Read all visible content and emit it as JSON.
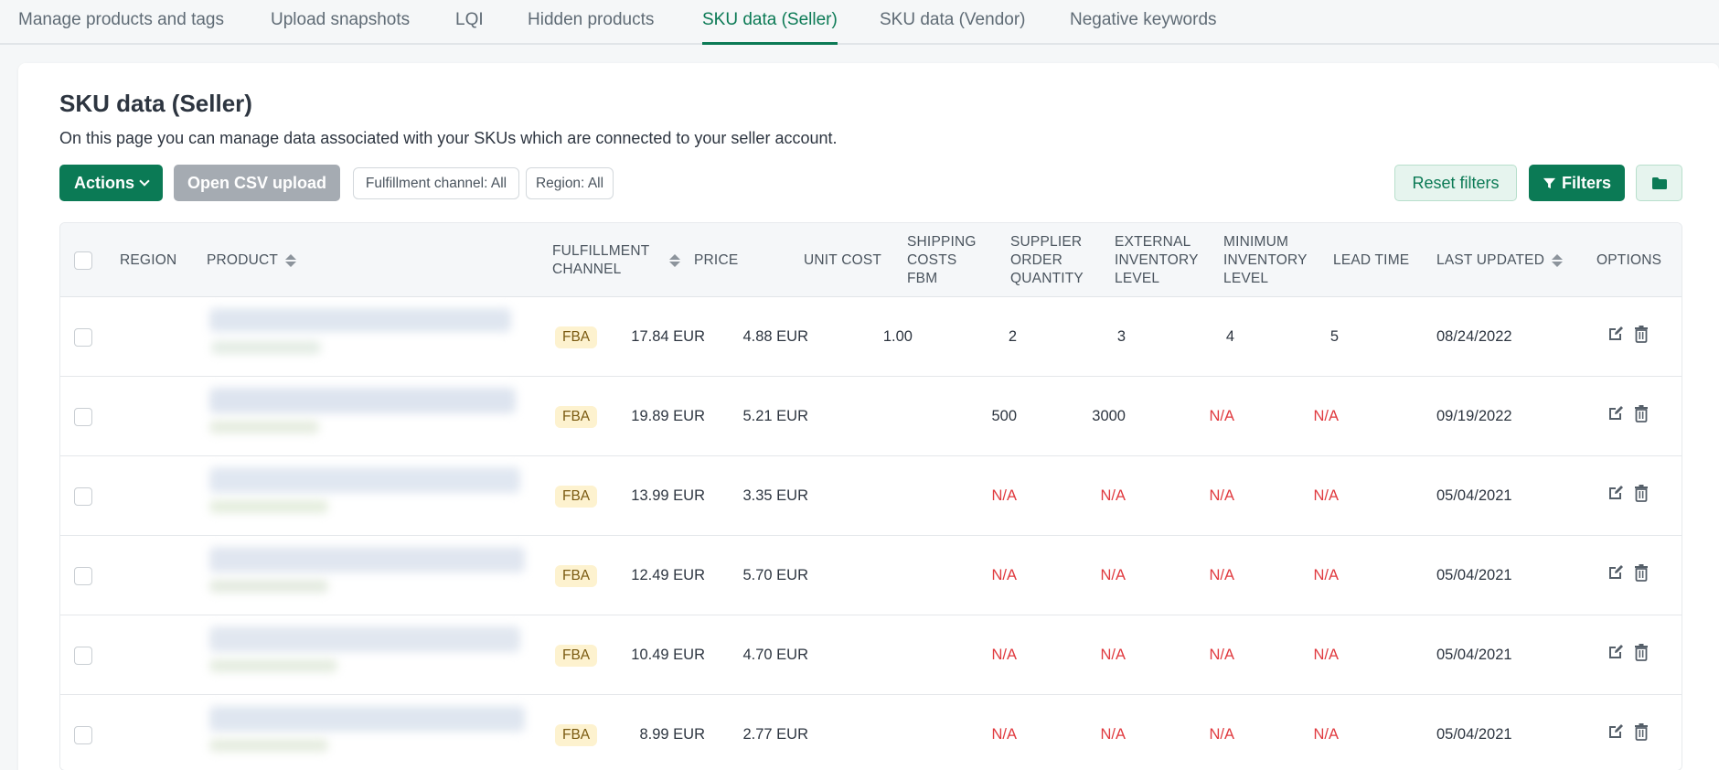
{
  "tabs": [
    {
      "label": "Manage products and tags",
      "active": false
    },
    {
      "label": "Upload snapshots",
      "active": false
    },
    {
      "label": "LQI",
      "active": false
    },
    {
      "label": "Hidden products",
      "active": false
    },
    {
      "label": "SKU data (Seller)",
      "active": true
    },
    {
      "label": "SKU data (Vendor)",
      "active": false
    },
    {
      "label": "Negative keywords",
      "active": false
    }
  ],
  "page": {
    "title": "SKU data (Seller)",
    "description": "On this page you can manage data associated with your SKUs which are connected to your seller account."
  },
  "toolbar": {
    "actions_label": "Actions",
    "csv_label": "Open CSV upload",
    "fulfillment_chip": "Fulfillment channel: All",
    "region_chip": "Region: All",
    "reset_label": "Reset filters",
    "filters_label": "Filters",
    "folder_icon": "folder-icon"
  },
  "table": {
    "columns": {
      "region": "REGION",
      "product": "PRODUCT",
      "fulfillment_channel": "FULFILLMENT CHANNEL",
      "price": "PRICE",
      "unit_cost": "UNIT COST",
      "shipping_costs_fbm": "SHIPPING COSTS FBM",
      "supplier_order_quantity": "SUPPLIER ORDER QUANTITY",
      "external_inventory_level": "EXTERNAL INVENTORY LEVEL",
      "minimum_inventory_level": "MINIMUM INVENTORY LEVEL",
      "lead_time": "LEAD TIME",
      "last_updated": "LAST UPDATED",
      "options": "OPTIONS"
    },
    "rows": [
      {
        "fc": "FBA",
        "price": "17.84 EUR",
        "unit_cost": "4.88 EUR",
        "shipping": "1.00",
        "soq": "2",
        "ext": "3",
        "min": "4",
        "lead": "5",
        "updated": "08/24/2022"
      },
      {
        "fc": "FBA",
        "price": "19.89 EUR",
        "unit_cost": "5.21 EUR",
        "shipping": "",
        "soq": "500",
        "ext": "3000",
        "min": "N/A",
        "lead": "N/A",
        "updated": "09/19/2022"
      },
      {
        "fc": "FBA",
        "price": "13.99 EUR",
        "unit_cost": "3.35 EUR",
        "shipping": "",
        "soq": "N/A",
        "ext": "N/A",
        "min": "N/A",
        "lead": "N/A",
        "updated": "05/04/2021"
      },
      {
        "fc": "FBA",
        "price": "12.49 EUR",
        "unit_cost": "5.70 EUR",
        "shipping": "",
        "soq": "N/A",
        "ext": "N/A",
        "min": "N/A",
        "lead": "N/A",
        "updated": "05/04/2021"
      },
      {
        "fc": "FBA",
        "price": "10.49 EUR",
        "unit_cost": "4.70 EUR",
        "shipping": "",
        "soq": "N/A",
        "ext": "N/A",
        "min": "N/A",
        "lead": "N/A",
        "updated": "05/04/2021"
      },
      {
        "fc": "FBA",
        "price": "8.99 EUR",
        "unit_cost": "2.77 EUR",
        "shipping": "",
        "soq": "N/A",
        "ext": "N/A",
        "min": "N/A",
        "lead": "N/A",
        "updated": "05/04/2021"
      }
    ]
  },
  "colors": {
    "accent": "#0b7a55",
    "na": "#e0393e",
    "badge_bg": "#fdf2cf"
  }
}
